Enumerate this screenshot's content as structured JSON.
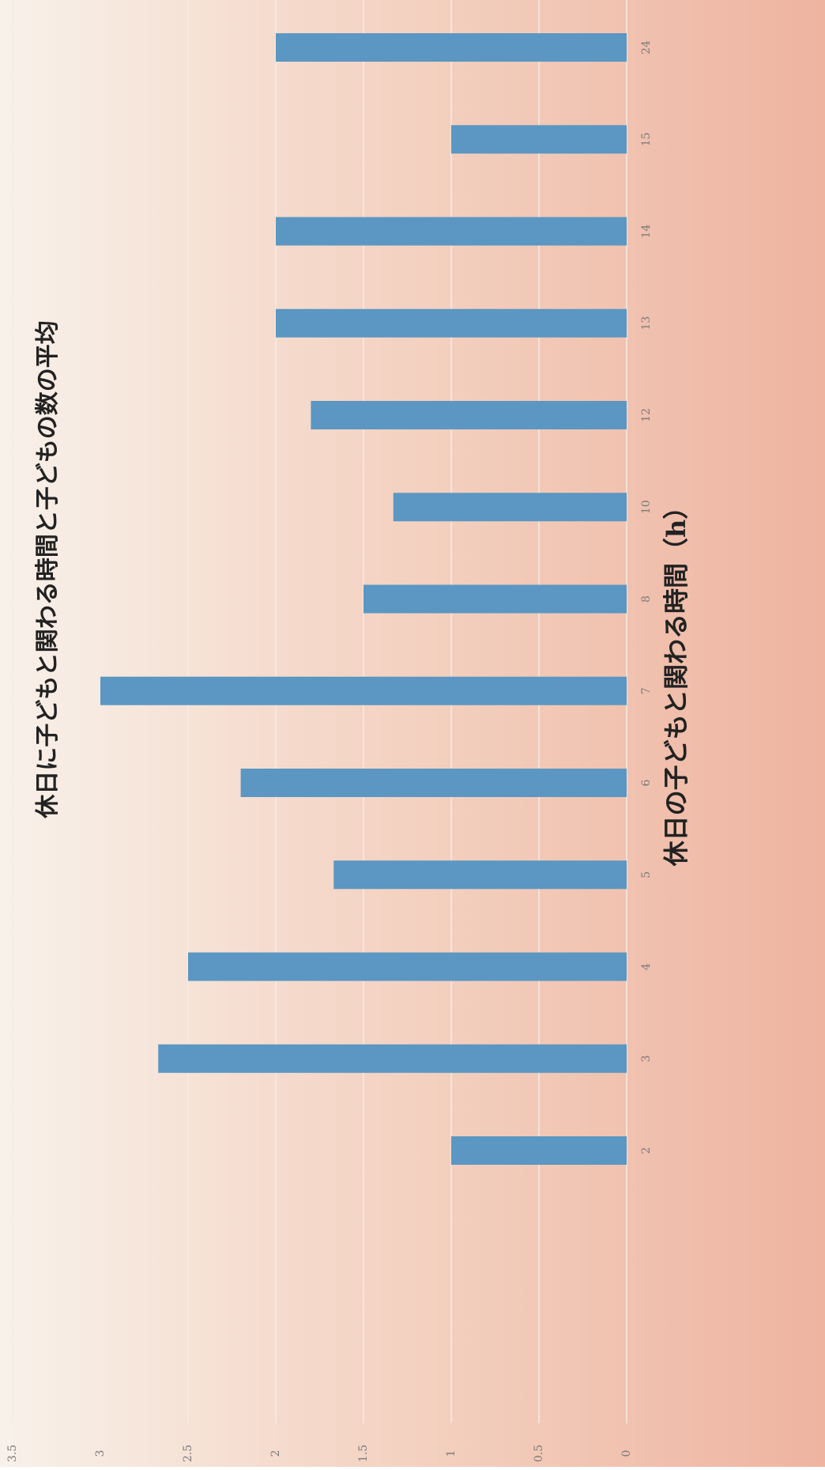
{
  "chart_data": {
    "type": "bar",
    "orientation": "horizontal",
    "title": "休日に子どもと関わる時間と子どもの数の平均",
    "x_label": "休日の子どもと関わる時間（h）",
    "categories": [
      "2",
      "3",
      "4",
      "5",
      "6",
      "7",
      "8",
      "10",
      "12",
      "13",
      "14",
      "15",
      "24"
    ],
    "values": [
      1,
      2.67,
      2.5,
      1.67,
      2.2,
      3,
      1.5,
      1.33,
      1.8,
      2,
      2,
      1,
      2
    ],
    "color": "#5b97c2",
    "ylim": [
      0,
      3.5
    ],
    "yticks": [
      0,
      0.5,
      1,
      1.5,
      2,
      2.5,
      3,
      3.5
    ],
    "grid": true
  }
}
